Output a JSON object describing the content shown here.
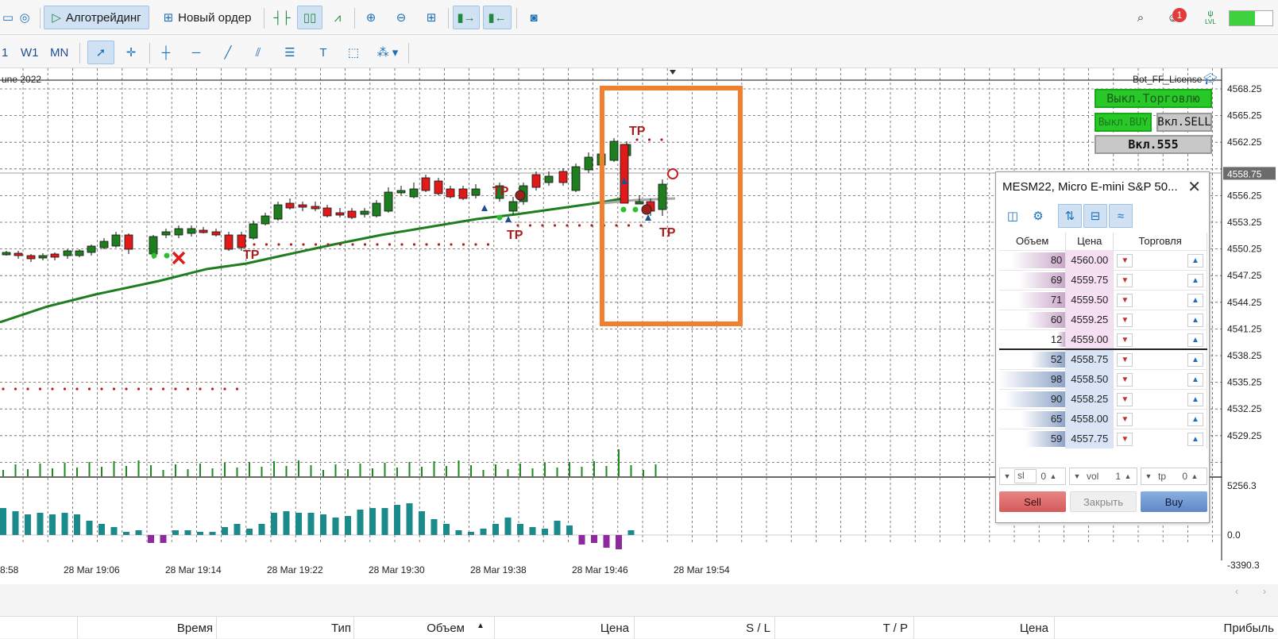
{
  "toolbar": {
    "algo_label": "Алготрейдинг",
    "new_order_label": "Новый ордер",
    "notif_count": "1",
    "lvl_label": "LVL"
  },
  "timeframes": [
    "1",
    "W1",
    "MN"
  ],
  "chart": {
    "date_label": "une 2022",
    "bot_label": "Bot_FF_License",
    "current_price": "4558.75",
    "price_ticks": [
      "4568.25",
      "4565.25",
      "4562.25",
      "4556.25",
      "4553.25",
      "4550.25",
      "4547.25",
      "4544.25",
      "4541.25",
      "4538.25",
      "4535.25",
      "4532.25",
      "4529.25"
    ],
    "indicator_ticks": [
      "5256.3",
      "0.0",
      "-3390.3"
    ],
    "time_ticks": [
      "8:58",
      "28 Mar 19:06",
      "28 Mar 19:14",
      "28 Mar 19:22",
      "28 Mar 19:30",
      "28 Mar 19:38",
      "28 Mar 19:46",
      "28 Mar 19:54"
    ],
    "tp_label": "TP",
    "buttons": {
      "off_trading": "Выкл.Торговлю",
      "off_buy": "Выкл.BUY",
      "on_sell": "Вкл.SELL",
      "on_555": "Вкл.555"
    },
    "colors": {
      "bull": "#1e7d1e",
      "bear": "#e01919",
      "ma": "#1e7d1e",
      "highlight": "#f08030",
      "histogram_pos": "#1a8a8a",
      "histogram_neg": "#8e2a9e"
    }
  },
  "dom": {
    "title": "MESM22, Micro E-mini S&P 50...",
    "headers": {
      "volume": "Объем",
      "price": "Цена",
      "trade": "Торговля"
    },
    "asks": [
      {
        "vol": "80",
        "price": "4560.00",
        "frac": 0.82
      },
      {
        "vol": "69",
        "price": "4559.75",
        "frac": 0.7
      },
      {
        "vol": "71",
        "price": "4559.50",
        "frac": 0.72
      },
      {
        "vol": "60",
        "price": "4559.25",
        "frac": 0.61
      },
      {
        "vol": "12",
        "price": "4559.00",
        "frac": 0.12
      }
    ],
    "bids": [
      {
        "vol": "52",
        "price": "4558.75",
        "frac": 0.53
      },
      {
        "vol": "98",
        "price": "4558.50",
        "frac": 1.0
      },
      {
        "vol": "90",
        "price": "4558.25",
        "frac": 0.92
      },
      {
        "vol": "65",
        "price": "4558.00",
        "frac": 0.66
      },
      {
        "vol": "59",
        "price": "4557.75",
        "frac": 0.6
      }
    ],
    "sl_label": "sl",
    "sl_value": "0",
    "vol_label": "vol",
    "vol_value": "1",
    "tp_label": "tp",
    "tp_value": "0",
    "sell_label": "Sell",
    "close_label": "Закрыть",
    "buy_label": "Buy"
  },
  "trades_header": {
    "time": "Время",
    "type": "Тип",
    "volume": "Объем",
    "price": "Цена",
    "sl": "S / L",
    "tp": "T / P",
    "price2": "Цена",
    "profit": "Прибыль"
  }
}
